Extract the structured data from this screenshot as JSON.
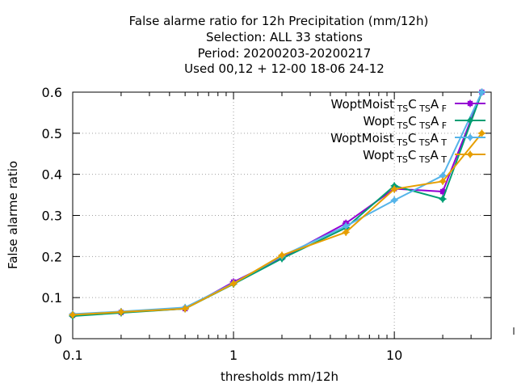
{
  "chart_data": {
    "type": "line",
    "title_lines": [
      "False alarme ratio  for 12h Precipitation (mm/12h)",
      "Selection: ALL     33 stations",
      "Period: 20200203-20200217",
      "Used  00,12  + 12-00 18-06 24-12"
    ],
    "xlabel": "thresholds mm/12h",
    "ylabel": "False alarme ratio",
    "x_scale": "log",
    "xlim": [
      0.1,
      40
    ],
    "ylim": [
      0,
      0.6
    ],
    "x_ticks": [
      0.1,
      1,
      10
    ],
    "x_tick_labels": [
      "0.1",
      "1",
      "10"
    ],
    "y_ticks": [
      0,
      0.1,
      0.2,
      0.3,
      0.4,
      0.5,
      0.6
    ],
    "y_tick_labels": [
      "0",
      "0.1",
      "0.2",
      "0.3",
      "0.4",
      "0.5",
      "0.6"
    ],
    "grid": true,
    "legend_position": "top-right",
    "x": [
      0.1,
      0.2,
      0.5,
      1,
      2,
      5,
      10,
      20,
      35
    ],
    "series": [
      {
        "name": "WoptMoist TS C TS A F",
        "legend_parts": [
          [
            "WoptMoist",
            "TS",
            "C",
            "TS",
            "A",
            "F"
          ]
        ],
        "color": "#9400d3",
        "marker": "square",
        "values": [
          0.057,
          0.064,
          0.073,
          0.138,
          0.197,
          0.281,
          0.365,
          0.358,
          0.6
        ]
      },
      {
        "name": "Wopt TS C TS A F",
        "color": "#009e73",
        "marker": "diamond",
        "values": [
          0.055,
          0.063,
          0.073,
          0.133,
          0.195,
          0.27,
          0.372,
          0.34,
          0.6
        ]
      },
      {
        "name": "WoptMoist TS C TS A T",
        "color": "#56b4e9",
        "marker": "diamond",
        "values": [
          0.06,
          0.066,
          0.076,
          0.135,
          0.201,
          0.274,
          0.337,
          0.397,
          0.6
        ]
      },
      {
        "name": "Wopt TS C TS A T",
        "color": "#e69f00",
        "marker": "diamond",
        "values": [
          0.058,
          0.065,
          0.073,
          0.134,
          0.203,
          0.259,
          0.364,
          0.383,
          0.5
        ]
      }
    ],
    "legend": [
      {
        "main": "WoptMoist",
        "s1": "TS",
        "c": "C",
        "s2": "TS",
        "a": "A",
        "s3": "F"
      },
      {
        "main": "Wopt",
        "s1": "TS",
        "c": "C",
        "s2": "TS",
        "a": "A",
        "s3": "F"
      },
      {
        "main": "WoptMoist",
        "s1": "TS",
        "c": "C",
        "s2": "TS",
        "a": "A",
        "s3": "T"
      },
      {
        "main": "Wopt",
        "s1": "TS",
        "c": "C",
        "s2": "TS",
        "a": "A",
        "s3": "T"
      }
    ]
  }
}
